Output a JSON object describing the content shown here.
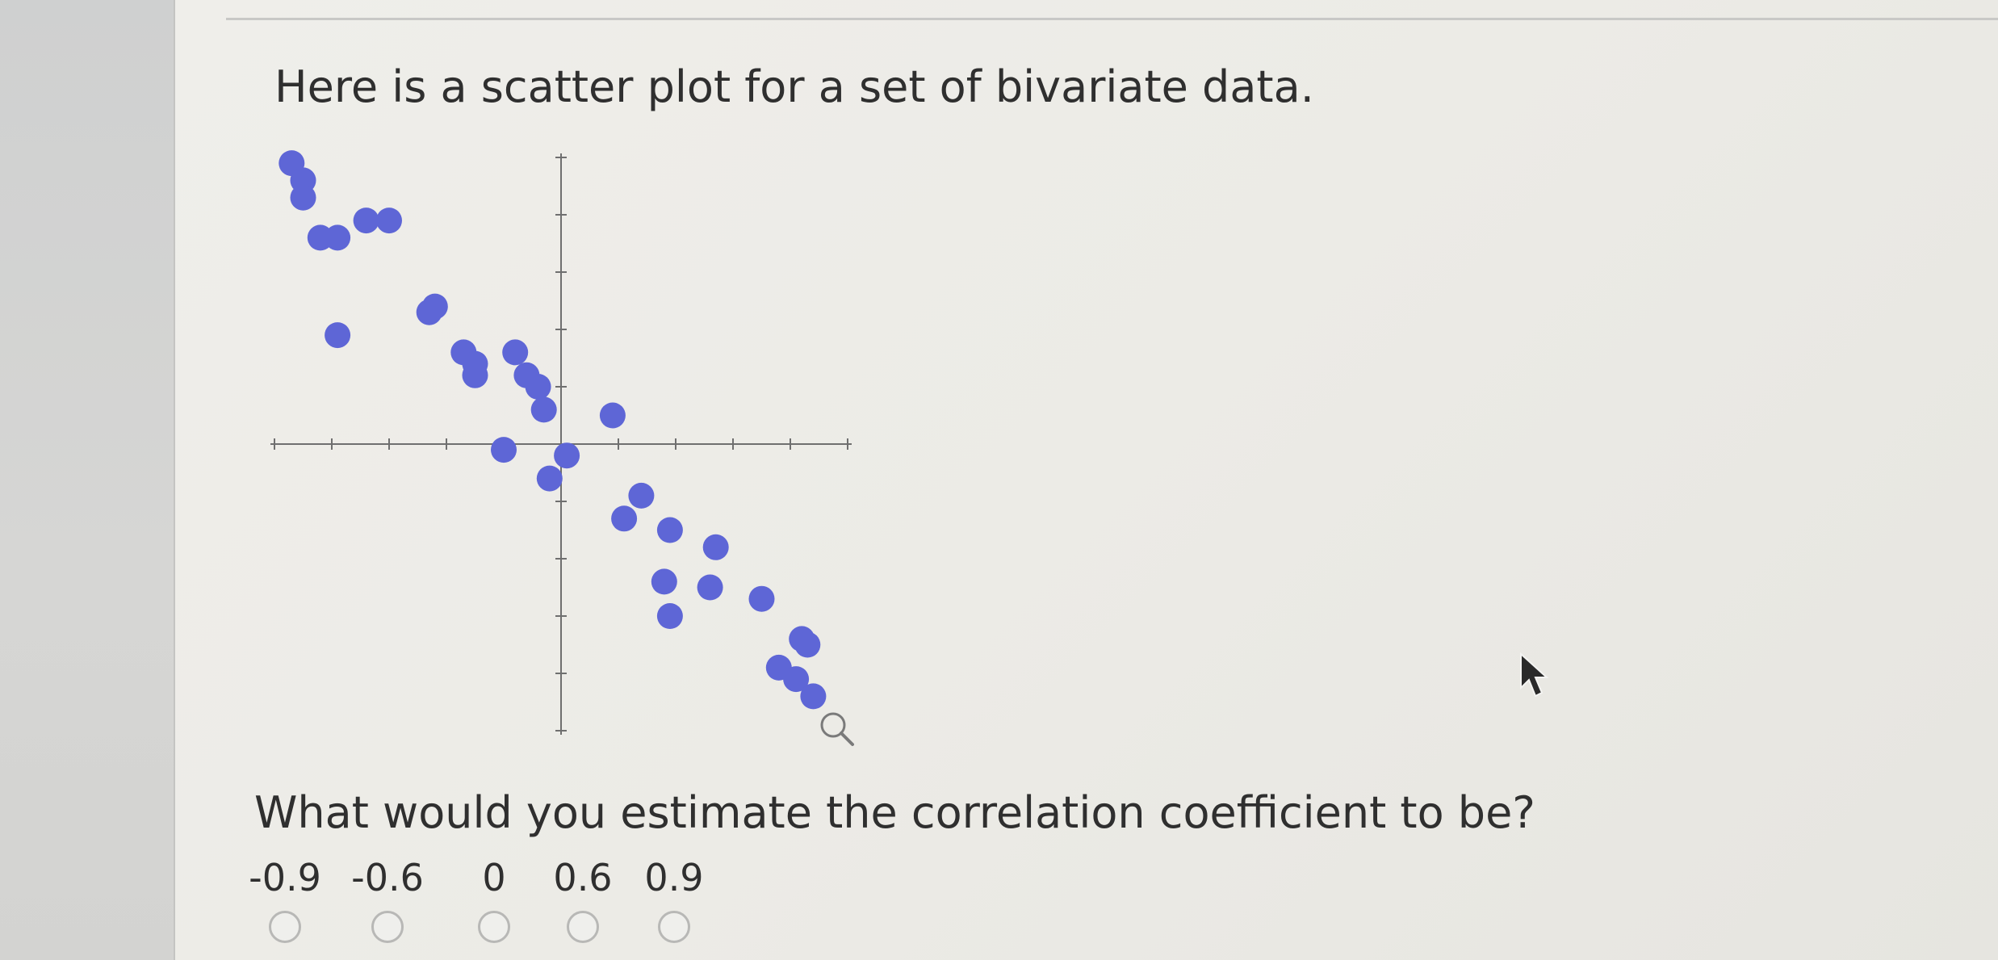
{
  "question": {
    "intro": "Here is a scatter plot for a set of bivariate data.",
    "prompt": "What would you estimate the correlation coefficient to be?"
  },
  "options": [
    {
      "label": "-0.9",
      "selected": false
    },
    {
      "label": "-0.6",
      "selected": false
    },
    {
      "label": "0",
      "selected": false
    },
    {
      "label": "0.6",
      "selected": false
    },
    {
      "label": "0.9",
      "selected": false
    }
  ],
  "colors": {
    "point": "#5e66d6",
    "axis": "#6f6f6f",
    "text": "#2f2f2f"
  },
  "chart_data": {
    "type": "scatter",
    "title": "",
    "xlabel": "",
    "ylabel": "",
    "xlim": [
      -5,
      5
    ],
    "ylim": [
      -5,
      5
    ],
    "grid": false,
    "series": [
      {
        "x": [
          -4.7,
          -4.5,
          -4.5,
          -4.2,
          -3.9,
          -3.4,
          -3.0,
          -3.9,
          -2.2,
          -2.3,
          -1.7,
          -1.5,
          -1.5,
          -0.8,
          -0.6,
          -0.4,
          -0.3,
          0.9,
          -1.0,
          0.1,
          -0.2,
          1.4,
          1.1,
          1.9,
          1.8,
          1.9,
          2.7,
          2.6,
          3.5,
          4.2,
          4.3,
          3.8,
          4.1,
          4.4
        ],
        "y": [
          4.9,
          4.6,
          4.3,
          3.6,
          3.6,
          3.9,
          3.9,
          1.9,
          2.4,
          2.3,
          1.6,
          1.4,
          1.2,
          1.6,
          1.2,
          1.0,
          0.6,
          0.5,
          -0.1,
          -0.2,
          -0.6,
          -0.9,
          -1.3,
          -1.5,
          -2.4,
          -3.0,
          -1.8,
          -2.5,
          -2.7,
          -3.4,
          -3.5,
          -3.9,
          -4.1,
          -4.4
        ]
      }
    ]
  }
}
